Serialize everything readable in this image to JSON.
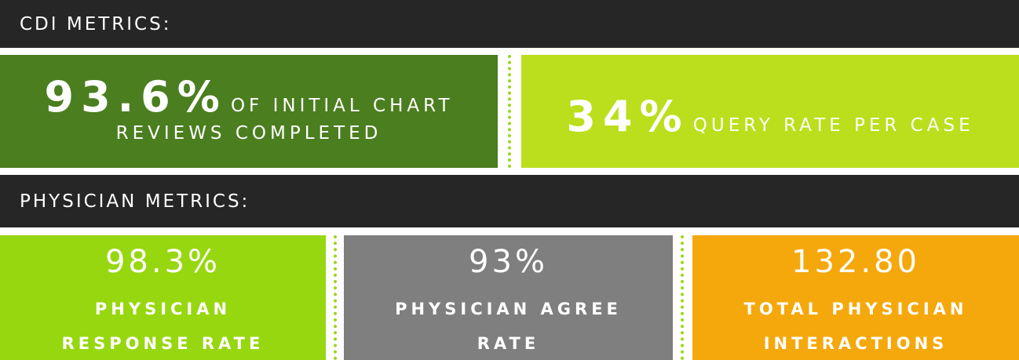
{
  "cdi_section": {
    "header": "CDI METRICS:",
    "initial_reviews": {
      "value": "93.6%",
      "label_line1": "OF INITIAL CHART",
      "label_line2": "REVIEWS COMPLETED"
    },
    "query_rate": {
      "value": "34%",
      "label": "QUERY RATE PER CASE"
    }
  },
  "physician_section": {
    "header": "PHYSICIAN METRICS:",
    "tiles": [
      {
        "value": "98.3%",
        "label_line1": "PHYSICIAN",
        "label_line2": "RESPONSE RATE"
      },
      {
        "value": "93%",
        "label_line1": "PHYSICIAN AGREE",
        "label_line2": "RATE"
      },
      {
        "value": "132.80",
        "label_line1": "TOTAL PHYSICIAN",
        "label_line2": "INTERACTIONS"
      }
    ]
  },
  "colors": {
    "header_bg": "#262626",
    "dark_green": "#4b7e1f",
    "lime": "#bbdf1c",
    "bright_green": "#97d70f",
    "gray": "#7f7f7f",
    "orange": "#f5a80c"
  }
}
